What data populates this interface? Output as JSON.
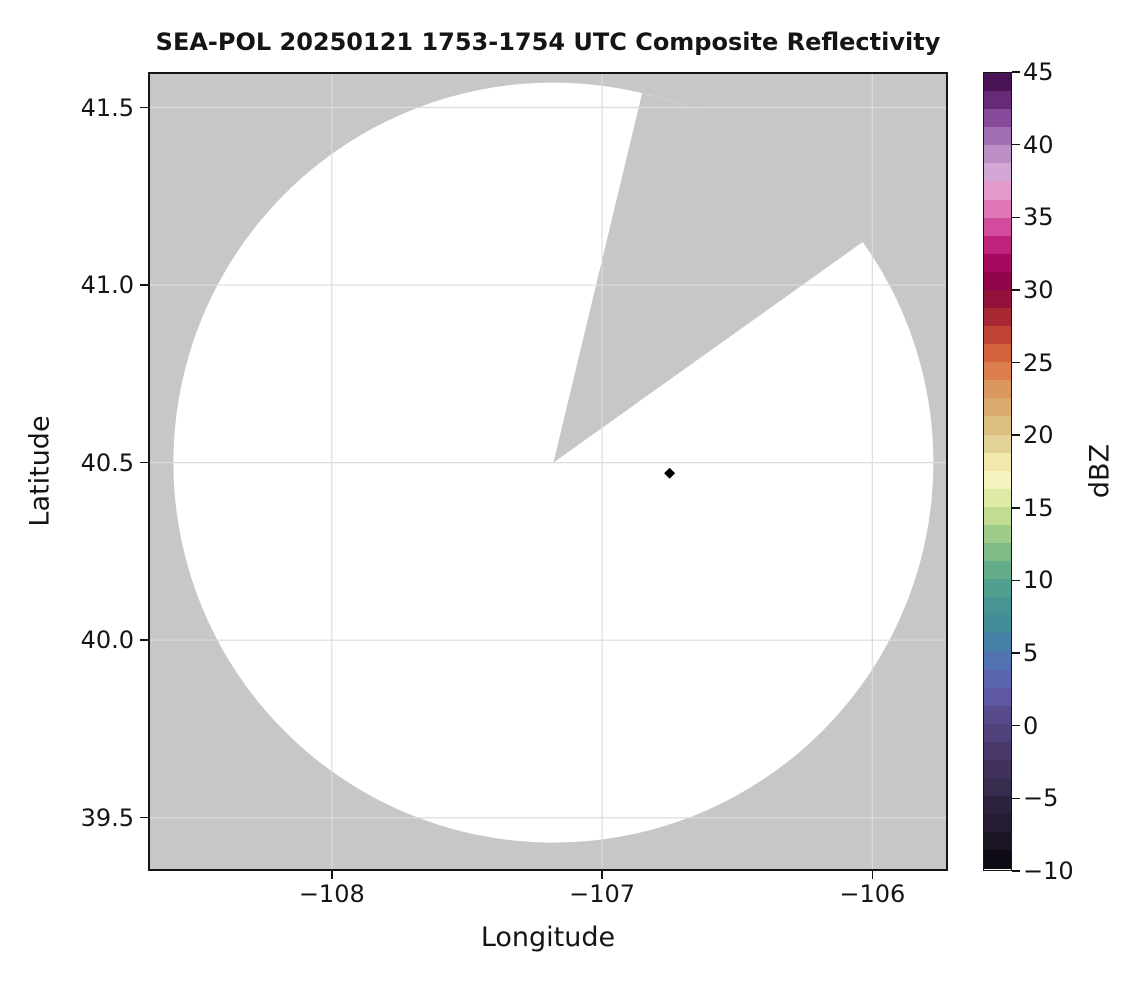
{
  "page": {
    "title": "SEA-POL 20250121 1753-1754 UTC Composite Reflectivity"
  },
  "axes": {
    "xlabel": "Longitude",
    "ylabel": "Latitude",
    "x_ticks": [
      {
        "label": "−108",
        "lon": -108
      },
      {
        "label": "−107",
        "lon": -107
      },
      {
        "label": "−106",
        "lon": -106
      }
    ],
    "y_ticks": [
      {
        "label": "41.5",
        "lat": 41.5
      },
      {
        "label": "41.0",
        "lat": 41.0
      },
      {
        "label": "40.5",
        "lat": 40.5
      },
      {
        "label": "40.0",
        "lat": 40.0
      },
      {
        "label": "39.5",
        "lat": 39.5
      }
    ]
  },
  "colorbar": {
    "label": "dBZ",
    "vmin": -10,
    "vmax": 45,
    "num_bands": 44,
    "ticks": [
      {
        "label": "45",
        "value": 45
      },
      {
        "label": "40",
        "value": 40
      },
      {
        "label": "35",
        "value": 35
      },
      {
        "label": "30",
        "value": 30
      },
      {
        "label": "25",
        "value": 25
      },
      {
        "label": "20",
        "value": 20
      },
      {
        "label": "15",
        "value": 15
      },
      {
        "label": "10",
        "value": 10
      },
      {
        "label": "5",
        "value": 5
      },
      {
        "label": "0",
        "value": 0
      },
      {
        "label": "−5",
        "value": -5
      },
      {
        "label": "−10",
        "value": -10
      }
    ],
    "stops": [
      [
        -10.0,
        "#0a070d"
      ],
      [
        -8.5,
        "#191322"
      ],
      [
        -7.0,
        "#241b31"
      ],
      [
        -5.5,
        "#2f2440"
      ],
      [
        -4.0,
        "#3a2d52"
      ],
      [
        -2.5,
        "#453663"
      ],
      [
        -1.0,
        "#4f3f76"
      ],
      [
        0.5,
        "#584a89"
      ],
      [
        2.0,
        "#5e59a5"
      ],
      [
        3.5,
        "#5a68b1"
      ],
      [
        5.0,
        "#4a7aad"
      ],
      [
        6.5,
        "#42889b"
      ],
      [
        8.0,
        "#459393"
      ],
      [
        9.5,
        "#51a08e"
      ],
      [
        11.0,
        "#6cb088"
      ],
      [
        12.5,
        "#8fc387"
      ],
      [
        14.0,
        "#b8d88f"
      ],
      [
        15.5,
        "#dceaa4"
      ],
      [
        17.0,
        "#f7f5c0"
      ],
      [
        18.5,
        "#eee3a6"
      ],
      [
        20.0,
        "#ddc88b"
      ],
      [
        21.5,
        "#d8af70"
      ],
      [
        23.0,
        "#da9a60"
      ],
      [
        24.5,
        "#dd7c4b"
      ],
      [
        26.0,
        "#d15a39"
      ],
      [
        27.5,
        "#b43431"
      ],
      [
        29.0,
        "#951536"
      ],
      [
        30.5,
        "#8e0347"
      ],
      [
        32.0,
        "#a80b60"
      ],
      [
        33.5,
        "#c42986"
      ],
      [
        35.0,
        "#dc64ab"
      ],
      [
        36.5,
        "#e694c9"
      ],
      [
        38.0,
        "#d4a8d6"
      ],
      [
        39.5,
        "#b98cc4"
      ],
      [
        41.0,
        "#9a64ad"
      ],
      [
        42.5,
        "#76378a"
      ],
      [
        44.0,
        "#531761"
      ],
      [
        45.0,
        "#39093f"
      ]
    ]
  },
  "colors": {
    "no_data_gray": "#c7c7c7",
    "coverage_white": "#ffffff",
    "grid_line": "#dcdcdc",
    "spine": "#151515",
    "marker_black": "#000000"
  },
  "chart_data": {
    "type": "heatmap",
    "title": "SEA-POL 20250121 1753-1754 UTC Composite Reflectivity",
    "xlabel": "Longitude",
    "ylabel": "Latitude",
    "xlim": [
      -108.68,
      -105.72
    ],
    "ylim": [
      39.35,
      41.6
    ],
    "xticks": [
      -108,
      -107,
      -106
    ],
    "yticks": [
      39.5,
      40.0,
      40.5,
      41.0,
      41.5
    ],
    "grid": true,
    "legend_position": "right-colorbar",
    "colorbar_label": "dBZ",
    "colorbar_range": [
      -10,
      45
    ],
    "colorbar_tick_step": 5,
    "radar": {
      "name": "SEA-POL",
      "center_lon": -107.18,
      "center_lat": 40.5,
      "coverage_radius_deg_lat": 1.07,
      "no_data_sector_azimuth_deg": [
        13.5,
        54.5
      ],
      "outside_range_fill": "no-data gray",
      "inside_range_fill": "white (no echoes detected)"
    },
    "echo_points": [
      {
        "lon": -106.75,
        "lat": 40.47,
        "approx_dbz": -10,
        "color": "#000000",
        "shape": "diamond"
      }
    ]
  }
}
